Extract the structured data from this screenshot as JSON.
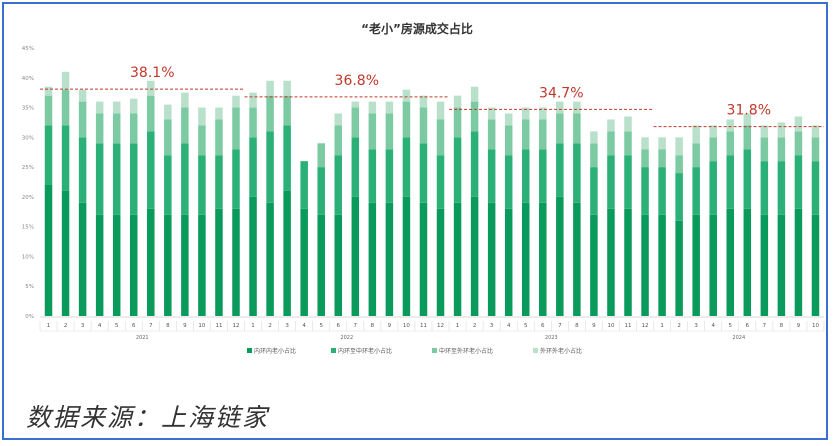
{
  "chart_data": {
    "type": "bar",
    "stacked": true,
    "title": "“老小”房源成交占比",
    "ylim": [
      0,
      45
    ],
    "yticks": [
      "0%",
      "5%",
      "10%",
      "15%",
      "20%",
      "25%",
      "30%",
      "35%",
      "40%",
      "45%"
    ],
    "grid": false,
    "legend_position": "bottom",
    "colors": [
      "#0a9a5c",
      "#2bb078",
      "#7bcaa2",
      "#b9e0cb"
    ],
    "categories": [
      "1",
      "2",
      "3",
      "4",
      "5",
      "6",
      "7",
      "8",
      "9",
      "10",
      "11",
      "12",
      "1",
      "2",
      "3",
      "4",
      "5",
      "6",
      "7",
      "8",
      "9",
      "10",
      "11",
      "12",
      "1",
      "2",
      "3",
      "4",
      "5",
      "6",
      "7",
      "8",
      "9",
      "10",
      "11",
      "12",
      "1",
      "2",
      "3",
      "4",
      "5",
      "6",
      "7",
      "8",
      "9",
      "10"
    ],
    "years": [
      {
        "label": "2021",
        "start": 0,
        "end": 11
      },
      {
        "label": "2022",
        "start": 12,
        "end": 23
      },
      {
        "label": "2023",
        "start": 24,
        "end": 35
      },
      {
        "label": "2024",
        "start": 36,
        "end": 45
      }
    ],
    "series": [
      {
        "name": "内环内老小占比",
        "values": [
          22,
          21,
          19,
          17,
          17,
          17,
          18,
          17,
          17,
          17,
          18,
          18,
          20,
          19,
          21,
          18,
          17,
          17,
          20,
          19,
          19,
          20,
          19,
          18,
          19,
          20,
          19,
          18,
          19,
          19,
          20,
          19,
          17,
          18,
          18,
          17,
          17,
          16,
          17,
          17,
          18,
          18,
          17,
          17,
          18,
          17
        ]
      },
      {
        "name": "内环至中环老小占比",
        "values": [
          10,
          11,
          11,
          12,
          12,
          12,
          13,
          10,
          12,
          10,
          9,
          10,
          10,
          12,
          11,
          8,
          8,
          10,
          10,
          9,
          9,
          10,
          10,
          9,
          11,
          11,
          9,
          9,
          9,
          9,
          9,
          10,
          8,
          9,
          9,
          8,
          8,
          8,
          8,
          9,
          9,
          10,
          9,
          9,
          9,
          9
        ]
      },
      {
        "name": "中环至外环老小占比",
        "values": [
          5,
          6,
          6,
          5,
          5,
          5,
          6,
          6,
          6,
          5,
          6,
          7,
          5,
          6,
          5,
          0,
          4,
          5,
          5,
          6,
          6,
          6,
          6,
          6,
          5,
          5,
          5,
          5,
          5,
          5,
          5,
          5,
          4,
          4,
          4,
          3,
          3,
          3,
          4,
          4,
          4,
          4,
          4,
          4,
          4,
          4
        ]
      },
      {
        "name": "外环外老小占比",
        "values": [
          1.5,
          3,
          2,
          2,
          2,
          2.5,
          2.5,
          2.5,
          2.5,
          3,
          2,
          2,
          2.5,
          2.5,
          2.5,
          0,
          0,
          2,
          1,
          2,
          2,
          2,
          2,
          3,
          2,
          2.5,
          2,
          2,
          2,
          2,
          2,
          2,
          2,
          2,
          2.5,
          2,
          2,
          3,
          3,
          2,
          2,
          2,
          2,
          2.5,
          2.5,
          2
        ]
      }
    ],
    "annotations": [
      {
        "text": "38.1%",
        "value": 38.1,
        "start": 0,
        "end": 11
      },
      {
        "text": "36.8%",
        "value": 36.8,
        "start": 12,
        "end": 23
      },
      {
        "text": "34.7%",
        "value": 34.7,
        "start": 24,
        "end": 35
      },
      {
        "text": "31.8%",
        "value": 31.8,
        "start": 36,
        "end": 45
      }
    ]
  },
  "source_text": "数据来源：上海链家"
}
